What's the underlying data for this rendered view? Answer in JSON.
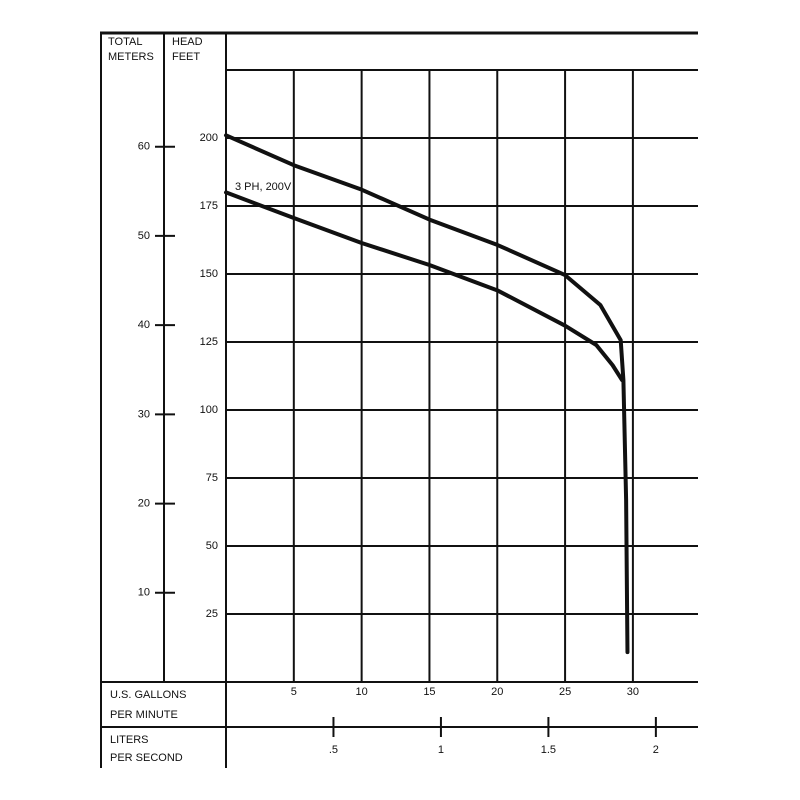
{
  "chart_data": {
    "type": "line",
    "ylabel": [
      "HEAD",
      "FEET"
    ],
    "y2label": [
      "TOTAL",
      "METERS"
    ],
    "xlabel": [
      "U.S. GALLONS",
      "PER MINUTE"
    ],
    "x2label": [
      "LITERS",
      "PER SECOND"
    ],
    "annotation": "3 PH, 200V",
    "xlim": [
      0,
      34.8
    ],
    "xticks": [
      5,
      10,
      15,
      20,
      25,
      30
    ],
    "x2lim": [
      0,
      2.196
    ],
    "x2ticks": [
      {
        "value": 0.5,
        "label": ".5"
      },
      1,
      1.5,
      2
    ],
    "ylim": [
      0,
      225
    ],
    "yticks": [
      25,
      50,
      75,
      100,
      125,
      150,
      175,
      200
    ],
    "y2lim": [
      0,
      68.6
    ],
    "y2ticks": [
      10,
      20,
      30,
      40,
      50,
      60
    ],
    "grid": true,
    "series": [
      {
        "color": "#111111",
        "x": [
          0,
          5,
          10,
          15,
          20,
          25,
          27.6,
          29.1,
          29.3,
          29.5,
          29.6
        ],
        "values": [
          201,
          190,
          181,
          170,
          160.7,
          149.6,
          138.6,
          125.7,
          111,
          67,
          11
        ]
      },
      {
        "name": "3 PH, 200V",
        "color": "#111111",
        "x": [
          0,
          5,
          10,
          15,
          20,
          25,
          27.3,
          28.5,
          29.2
        ],
        "values": [
          180,
          170.6,
          161.4,
          153.3,
          144,
          131,
          123.9,
          116.5,
          111
        ]
      }
    ]
  }
}
